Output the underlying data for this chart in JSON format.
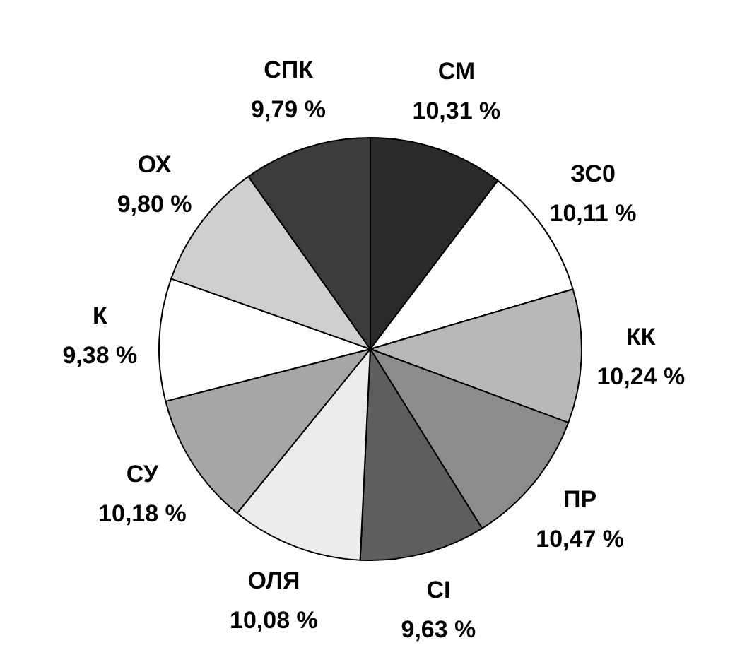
{
  "chart_data": {
    "type": "pie",
    "categories": [
      "СМ",
      "ЗС0",
      "КК",
      "ПР",
      "СІ",
      "ОЛЯ",
      "СУ",
      "К",
      "ОХ",
      "СПК"
    ],
    "values": [
      10.31,
      10.11,
      10.24,
      10.47,
      9.63,
      10.08,
      10.18,
      9.38,
      9.8,
      9.79
    ],
    "colors": [
      "#2a2a2a",
      "#ffffff",
      "#b8b8b8",
      "#8c8c8c",
      "#5e5e5e",
      "#ececec",
      "#a6a6a6",
      "#ffffff",
      "#cfcfcf",
      "#3c3c3c"
    ],
    "value_labels": [
      "10,31 %",
      "10,11 %",
      "10,24 %",
      "10,47 %",
      "9,63 %",
      "10,08 %",
      "10,18 %",
      "9,38 %",
      "9,80 %",
      "9,79 %"
    ]
  }
}
